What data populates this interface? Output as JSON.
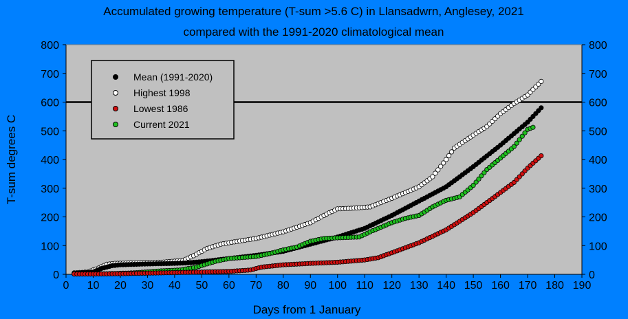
{
  "chart_data": {
    "type": "scatter",
    "title": "Accumulated growing temperature (T-sum >5.6 C) in Llansadwrn, Anglesey, 2021",
    "subtitle": "compared with the 1991-2020 climatological mean",
    "xlabel": "Days from 1 January",
    "ylabel": "T-sum degrees C",
    "xlim": [
      0,
      190
    ],
    "ylim": [
      0,
      800
    ],
    "x_ticks": [
      0,
      10,
      20,
      30,
      40,
      50,
      60,
      70,
      80,
      90,
      100,
      110,
      120,
      130,
      140,
      150,
      160,
      170,
      180,
      190
    ],
    "y_ticks": [
      0,
      100,
      200,
      300,
      400,
      500,
      600,
      700,
      800
    ],
    "reference_line": 600,
    "legend_position": "top-left",
    "series": [
      {
        "name": "Mean (1991-2020)",
        "color": "#000000",
        "fill": "#000000",
        "points": [
          [
            3,
            3
          ],
          [
            10,
            8
          ],
          [
            13,
            20
          ],
          [
            17,
            30
          ],
          [
            20,
            33
          ],
          [
            30,
            36
          ],
          [
            40,
            38
          ],
          [
            45,
            40
          ],
          [
            50,
            44
          ],
          [
            60,
            55
          ],
          [
            70,
            66
          ],
          [
            80,
            80
          ],
          [
            90,
            105
          ],
          [
            100,
            130
          ],
          [
            110,
            160
          ],
          [
            120,
            205
          ],
          [
            130,
            255
          ],
          [
            140,
            305
          ],
          [
            150,
            375
          ],
          [
            160,
            450
          ],
          [
            170,
            530
          ],
          [
            175,
            580
          ]
        ]
      },
      {
        "name": "Highest 1998",
        "color": "#000000",
        "fill": "#ffffff",
        "points": [
          [
            3,
            5
          ],
          [
            8,
            8
          ],
          [
            12,
            22
          ],
          [
            15,
            35
          ],
          [
            18,
            38
          ],
          [
            25,
            40
          ],
          [
            35,
            42
          ],
          [
            43,
            48
          ],
          [
            47,
            65
          ],
          [
            52,
            90
          ],
          [
            57,
            105
          ],
          [
            60,
            110
          ],
          [
            70,
            125
          ],
          [
            80,
            148
          ],
          [
            90,
            180
          ],
          [
            96,
            210
          ],
          [
            100,
            228
          ],
          [
            105,
            230
          ],
          [
            112,
            235
          ],
          [
            120,
            265
          ],
          [
            130,
            305
          ],
          [
            135,
            340
          ],
          [
            140,
            400
          ],
          [
            143,
            440
          ],
          [
            150,
            485
          ],
          [
            155,
            515
          ],
          [
            160,
            560
          ],
          [
            165,
            595
          ],
          [
            170,
            625
          ],
          [
            175,
            672
          ]
        ]
      },
      {
        "name": "Lowest 1986",
        "color": "#000000",
        "fill": "#d01010",
        "points": [
          [
            3,
            1
          ],
          [
            10,
            1
          ],
          [
            20,
            2
          ],
          [
            30,
            4
          ],
          [
            40,
            6
          ],
          [
            50,
            8
          ],
          [
            60,
            10
          ],
          [
            68,
            15
          ],
          [
            72,
            25
          ],
          [
            80,
            33
          ],
          [
            90,
            38
          ],
          [
            100,
            42
          ],
          [
            110,
            50
          ],
          [
            115,
            58
          ],
          [
            120,
            75
          ],
          [
            130,
            110
          ],
          [
            140,
            155
          ],
          [
            150,
            215
          ],
          [
            155,
            250
          ],
          [
            160,
            285
          ],
          [
            165,
            320
          ],
          [
            170,
            370
          ],
          [
            175,
            413
          ]
        ]
      },
      {
        "name": "Current 2021",
        "color": "#000000",
        "fill": "#20c020",
        "points": [
          [
            3,
            1
          ],
          [
            15,
            2
          ],
          [
            25,
            5
          ],
          [
            35,
            12
          ],
          [
            42,
            15
          ],
          [
            48,
            25
          ],
          [
            55,
            45
          ],
          [
            60,
            55
          ],
          [
            70,
            62
          ],
          [
            75,
            72
          ],
          [
            80,
            85
          ],
          [
            85,
            95
          ],
          [
            90,
            115
          ],
          [
            95,
            125
          ],
          [
            100,
            127
          ],
          [
            108,
            130
          ],
          [
            112,
            148
          ],
          [
            120,
            180
          ],
          [
            125,
            195
          ],
          [
            130,
            205
          ],
          [
            135,
            235
          ],
          [
            140,
            258
          ],
          [
            145,
            270
          ],
          [
            150,
            310
          ],
          [
            155,
            365
          ],
          [
            160,
            405
          ],
          [
            165,
            445
          ],
          [
            170,
            505
          ],
          [
            172,
            512
          ]
        ]
      }
    ]
  }
}
